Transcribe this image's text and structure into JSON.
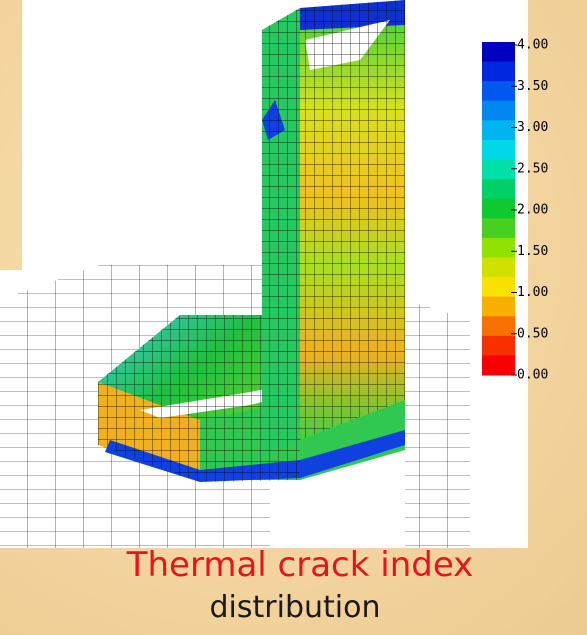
{
  "legend": {
    "labels": [
      "4.00",
      "3.50",
      "3.00",
      "2.50",
      "2.00",
      "1.50",
      "1.00",
      "0.50",
      "0.00"
    ]
  },
  "caption": {
    "line1": "Thermal crack index",
    "line2": "distribution"
  }
}
